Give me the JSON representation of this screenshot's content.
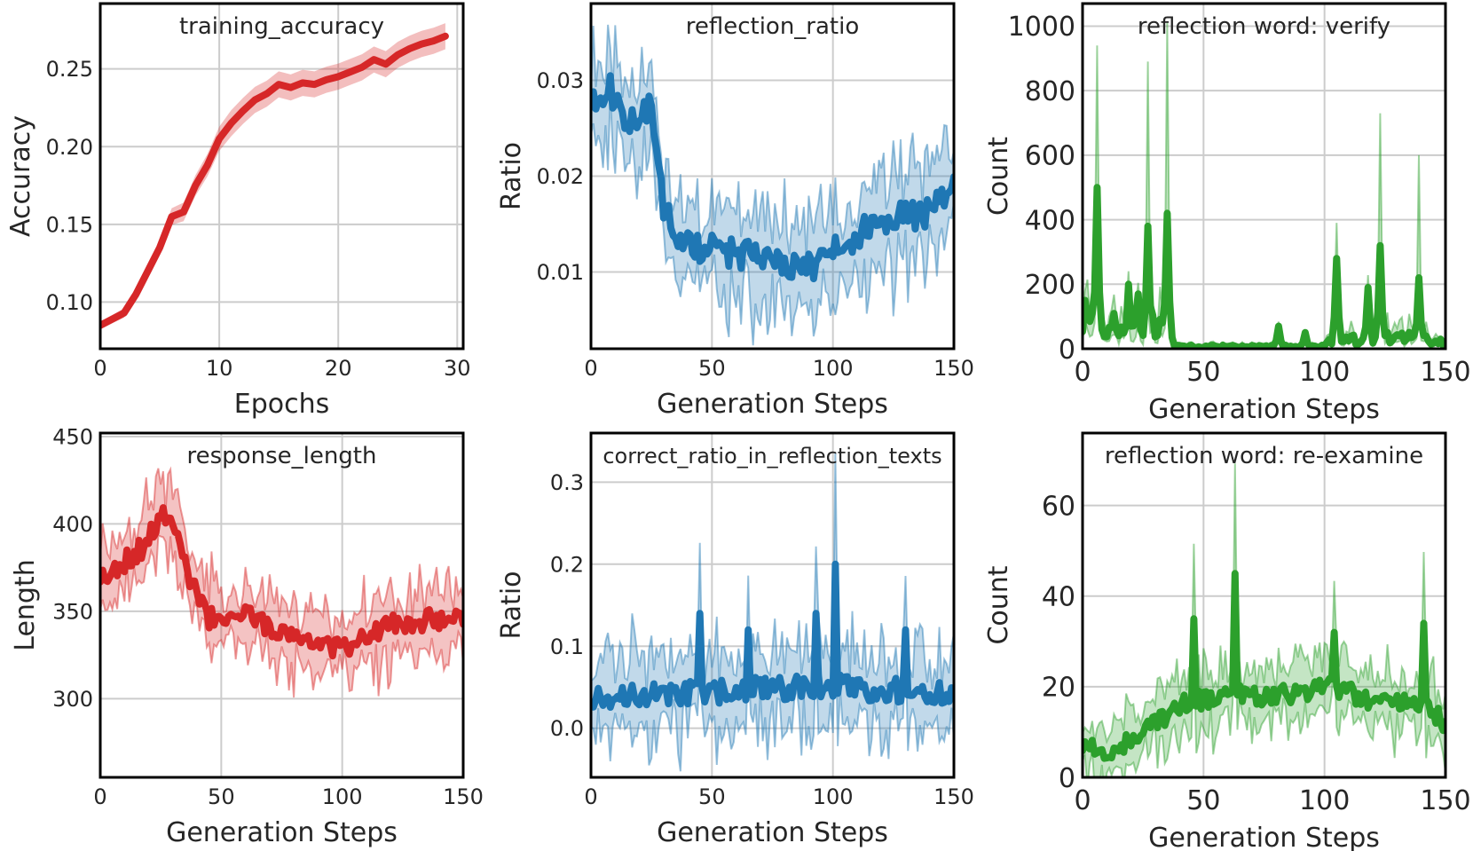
{
  "figure": {
    "description_free": true
  },
  "chart_data": [
    {
      "id": "acc",
      "type": "line",
      "title": "training_accuracy",
      "xlabel": "Epochs",
      "ylabel": "Accuracy",
      "xlim": [
        0,
        30.5
      ],
      "ylim": [
        0.07,
        0.292
      ],
      "xticks": [
        0,
        10,
        20,
        30
      ],
      "yticks": [
        0.1,
        0.15,
        0.2,
        0.25
      ],
      "ytick_decimals": 2,
      "color": "#d62728",
      "band_alpha": 0.3,
      "band_width": 0.006,
      "x": [
        0,
        2,
        3,
        4,
        5,
        6,
        7,
        8,
        9,
        10,
        11,
        12,
        13,
        14,
        15,
        16,
        17,
        18,
        19,
        20,
        21,
        22,
        23,
        24,
        25,
        26,
        27,
        28,
        29
      ],
      "y": [
        0.085,
        0.093,
        0.105,
        0.12,
        0.135,
        0.155,
        0.158,
        0.175,
        0.188,
        0.205,
        0.215,
        0.223,
        0.23,
        0.234,
        0.24,
        0.238,
        0.241,
        0.24,
        0.243,
        0.245,
        0.248,
        0.251,
        0.256,
        0.253,
        0.259,
        0.263,
        0.266,
        0.268,
        0.271
      ],
      "kind": "smooth"
    },
    {
      "id": "refl",
      "type": "line",
      "title": "reflection_ratio",
      "xlabel": "Generation Steps",
      "ylabel": "Ratio",
      "xlim": [
        0,
        150
      ],
      "ylim": [
        0.002,
        0.038
      ],
      "xticks": [
        0,
        50,
        100,
        150
      ],
      "yticks": [
        0.01,
        0.02,
        0.03
      ],
      "ytick_decimals": 2,
      "color": "#1f77b4",
      "noise": 0.0035,
      "seed": 11,
      "anchors_x": [
        0,
        8,
        15,
        25,
        30,
        35,
        45,
        60,
        75,
        90,
        100,
        110,
        125,
        140,
        150
      ],
      "anchors_y": [
        0.028,
        0.029,
        0.026,
        0.027,
        0.017,
        0.0135,
        0.0125,
        0.012,
        0.011,
        0.0105,
        0.012,
        0.014,
        0.016,
        0.016,
        0.019
      ],
      "kind": "noisy"
    },
    {
      "id": "verify",
      "type": "line",
      "title": "reflection word: verify",
      "xlabel": "Generation Steps",
      "ylabel": "Count",
      "xlim": [
        0,
        150
      ],
      "ylim": [
        0,
        1070
      ],
      "xticks": [
        0,
        50,
        100,
        150
      ],
      "yticks": [
        0,
        200,
        400,
        600,
        800,
        1000
      ],
      "ytick_decimals": 0,
      "color": "#2ca02c",
      "x_step": 1,
      "baseline": [
        [
          0,
          80
        ],
        [
          35,
          80
        ],
        [
          38,
          8
        ],
        [
          100,
          8
        ],
        [
          104,
          40
        ],
        [
          110,
          30
        ],
        [
          135,
          40
        ],
        [
          150,
          20
        ]
      ],
      "peaks_mean": [
        [
          1,
          150
        ],
        [
          6,
          500
        ],
        [
          19,
          200
        ],
        [
          23,
          170
        ],
        [
          27,
          380
        ],
        [
          35,
          420
        ],
        [
          81,
          70
        ],
        [
          92,
          50
        ],
        [
          105,
          280
        ],
        [
          118,
          190
        ],
        [
          123,
          320
        ],
        [
          139,
          220
        ],
        [
          148,
          30
        ]
      ],
      "peaks_spike": [
        [
          6,
          940
        ],
        [
          27,
          890
        ],
        [
          35,
          1010
        ],
        [
          105,
          390
        ],
        [
          123,
          730
        ],
        [
          139,
          600
        ]
      ],
      "kind": "spiky"
    },
    {
      "id": "len",
      "type": "line",
      "title": "response_length",
      "xlabel": "Generation Steps",
      "ylabel": "Length",
      "xlim": [
        0,
        150
      ],
      "ylim": [
        255,
        452
      ],
      "xticks": [
        0,
        50,
        100,
        150
      ],
      "yticks": [
        300,
        350,
        400,
        450
      ],
      "ytick_decimals": 0,
      "color": "#d62728",
      "noise": 14,
      "seed": 23,
      "anchors_x": [
        0,
        10,
        20,
        25,
        30,
        38,
        45,
        55,
        70,
        85,
        100,
        115,
        130,
        150
      ],
      "anchors_y": [
        370,
        378,
        390,
        408,
        400,
        365,
        345,
        350,
        342,
        335,
        328,
        340,
        345,
        345
      ],
      "kind": "noisy"
    },
    {
      "id": "correct",
      "type": "line",
      "title": "correct_ratio_in_reflection_texts",
      "xlabel": "Generation Steps",
      "ylabel": "Ratio",
      "xlim": [
        0,
        150
      ],
      "ylim": [
        -0.06,
        0.36
      ],
      "xticks": [
        0,
        50,
        100,
        150
      ],
      "yticks": [
        0.0,
        0.1,
        0.2,
        0.3
      ],
      "ytick_decimals": 1,
      "color": "#1f77b4",
      "noise": 0.035,
      "seed": 37,
      "anchors_x": [
        0,
        50,
        100,
        150
      ],
      "anchors_y": [
        0.04,
        0.045,
        0.05,
        0.045
      ],
      "spikes": [
        [
          45,
          0.14
        ],
        [
          65,
          0.12
        ],
        [
          93,
          0.14
        ],
        [
          101,
          0.2
        ],
        [
          130,
          0.12
        ]
      ],
      "kind": "noisy"
    },
    {
      "id": "reexamine",
      "type": "line",
      "title": "reflection word: re-examine",
      "xlabel": "Generation Steps",
      "ylabel": "Count",
      "xlim": [
        0,
        150
      ],
      "ylim": [
        0,
        76
      ],
      "xticks": [
        0,
        50,
        100,
        150
      ],
      "yticks": [
        0,
        20,
        40,
        60
      ],
      "ytick_decimals": 0,
      "color": "#2ca02c",
      "noise": 5,
      "seed": 53,
      "anchors_x": [
        0,
        15,
        25,
        40,
        60,
        80,
        100,
        120,
        140,
        150
      ],
      "anchors_y": [
        7,
        6,
        10,
        16,
        18,
        18,
        20,
        17,
        17,
        12
      ],
      "spikes": [
        [
          46,
          35
        ],
        [
          63,
          45
        ],
        [
          104,
          32
        ],
        [
          141,
          34
        ]
      ],
      "kind": "noisy"
    }
  ]
}
